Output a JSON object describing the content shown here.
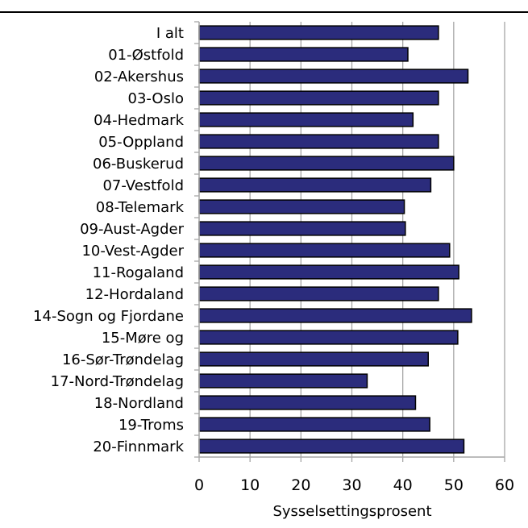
{
  "chart_data": {
    "type": "bar",
    "orientation": "horizontal",
    "categories": [
      "I alt",
      "01-Østfold",
      "02-Akershus",
      "03-Oslo",
      "04-Hedmark",
      "05-Oppland",
      "06-Buskerud",
      "07-Vestfold",
      "08-Telemark",
      "09-Aust-Agder",
      "10-Vest-Agder",
      "11-Rogaland",
      "12-Hordaland",
      "14-Sogn og Fjordane",
      "15-Møre og",
      "16-Sør-Trøndelag",
      "17-Nord-Trøndelag",
      "18-Nordland",
      "19-Troms",
      "20-Finnmark"
    ],
    "values": [
      47.0,
      41.0,
      52.8,
      47.0,
      42.0,
      47.0,
      50.0,
      45.5,
      40.3,
      40.5,
      49.2,
      51.0,
      47.0,
      53.5,
      50.8,
      45.0,
      33.0,
      42.5,
      45.3,
      52.0
    ],
    "xlabel": "Sysselsettingsprosent",
    "ylabel": "",
    "xlim": [
      0,
      60
    ],
    "xticks": [
      "0",
      "10",
      "20",
      "30",
      "40",
      "50",
      "60"
    ],
    "grid": true,
    "bar_color": "#2B2C7C",
    "bar_edge_color": "#000000",
    "grid_color": "#A6A6A6"
  }
}
